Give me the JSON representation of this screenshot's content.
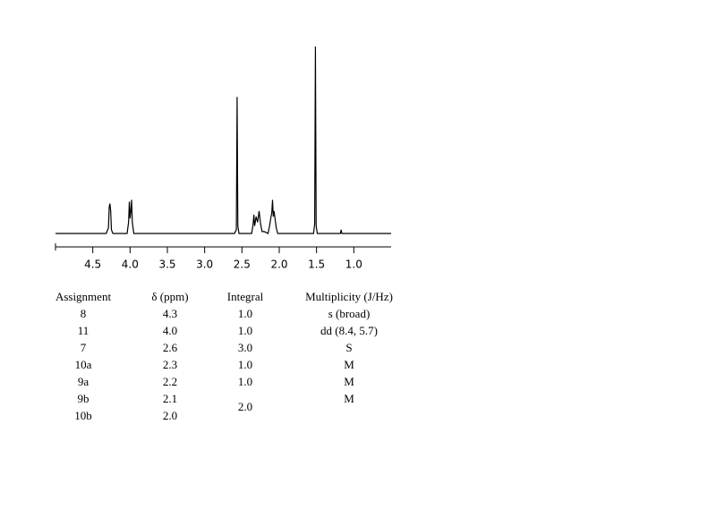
{
  "chart_data": {
    "type": "line",
    "color": "#000000",
    "x": [
      5.0,
      4.32,
      4.29,
      4.28,
      4.27,
      4.26,
      4.25,
      4.23,
      4.04,
      4.02,
      4.01,
      4.0,
      3.99,
      3.98,
      3.97,
      3.95,
      2.6,
      2.575,
      2.565,
      2.555,
      2.54,
      2.37,
      2.35,
      2.34,
      2.33,
      2.31,
      2.29,
      2.27,
      2.25,
      2.23,
      2.2,
      2.15,
      2.13,
      2.11,
      2.1,
      2.09,
      2.08,
      2.07,
      2.05,
      2.04,
      2.02,
      1.54,
      1.525,
      1.515,
      1.505,
      1.49,
      1.18,
      1.17,
      1.16,
      0.5
    ],
    "values": [
      0,
      0,
      3,
      14,
      16,
      12,
      2,
      0,
      0,
      6,
      17,
      8,
      12,
      18,
      6,
      0,
      0,
      2,
      73,
      4,
      0,
      0,
      5,
      10,
      4,
      9,
      6,
      12,
      5,
      1,
      1,
      0,
      4,
      9,
      11,
      18,
      9,
      12,
      6,
      3,
      0,
      0,
      5,
      100,
      4,
      0,
      0,
      2,
      0,
      0
    ],
    "xlim": [
      5.0,
      0.5
    ],
    "ylim": [
      0,
      100
    ],
    "xticks": [
      4.5,
      {
        "value": 4,
        "label": "4.0"
      },
      3.5,
      {
        "value": 3,
        "label": "3.0"
      },
      2.5,
      {
        "value": 2,
        "label": "2.0"
      },
      1.5,
      {
        "value": 1,
        "label": "1.0"
      }
    ]
  },
  "table": {
    "header": [
      "Assignment",
      "δ (ppm)",
      "Integral",
      "Multiplicity (J/Hz)"
    ],
    "rows": [
      [
        "8",
        "4.3",
        "1.0",
        "s (broad)"
      ],
      [
        "11",
        "4.0",
        "1.0",
        "dd (8.4, 5.7)"
      ],
      [
        "7",
        "2.6",
        "3.0",
        "S"
      ],
      [
        "10a",
        "2.3",
        "1.0",
        "M"
      ],
      [
        "9a",
        "2.2",
        "1.0",
        "M"
      ],
      [
        "9b",
        "2.1",
        "2.0",
        "M"
      ],
      [
        "10b",
        "2.0"
      ]
    ]
  }
}
